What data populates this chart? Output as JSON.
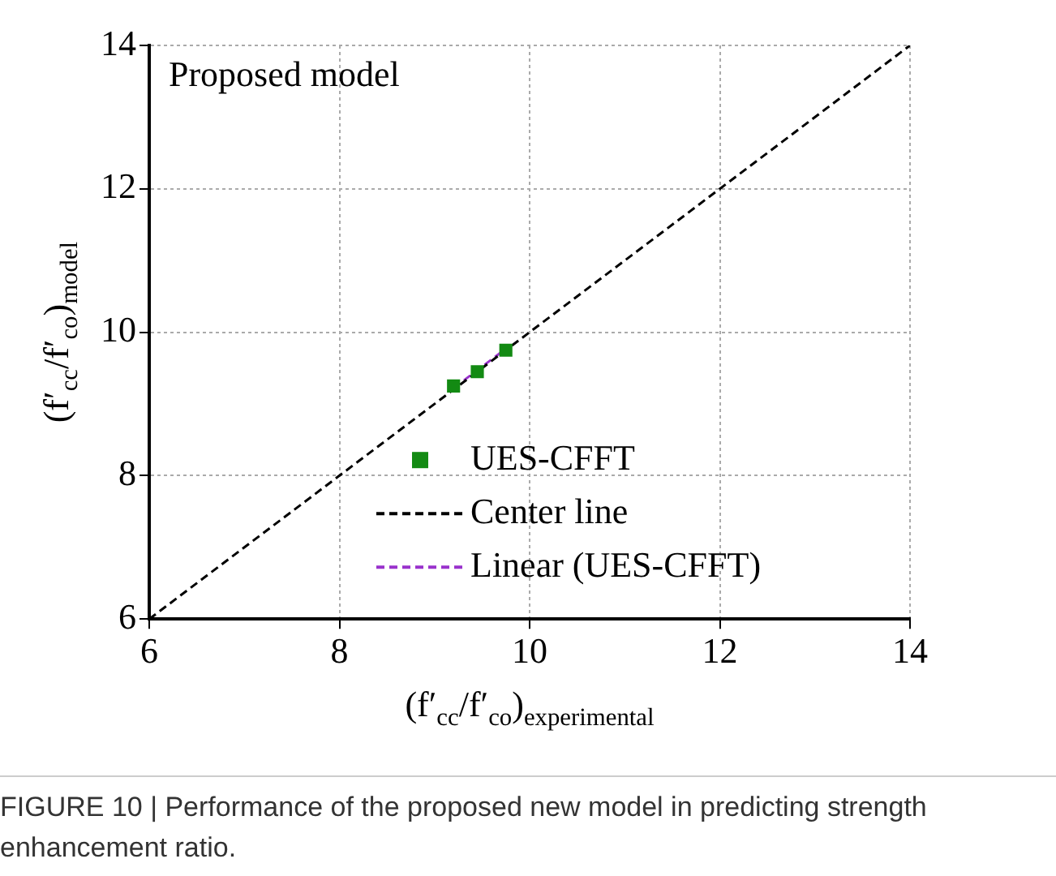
{
  "chart_data": {
    "type": "scatter",
    "title": "Proposed model",
    "xlabel": "(f′$_{cc}$/f′$_{co}$)$_{experimental}$",
    "ylabel": "(f′$_{cc}$/f′$_{co}$)$_{model}$",
    "series": [
      {
        "name": "UES-CFFT",
        "color": "#138a13",
        "marker": "square",
        "x": [
          9.2,
          9.45,
          9.75
        ],
        "values": [
          9.25,
          9.45,
          9.75
        ]
      },
      {
        "name": "Center line",
        "type": "line",
        "color": "#000000",
        "marker": "none",
        "line_style": "dashed",
        "x": [
          6,
          14
        ],
        "values": [
          6,
          14
        ]
      },
      {
        "name": "Linear (UES-CFFT)",
        "type": "line",
        "color": "#9932cc",
        "marker": "none",
        "line_style": "dashed",
        "x": [
          9.2,
          9.75
        ],
        "values": [
          9.22,
          9.77
        ]
      }
    ],
    "xlim": [
      6,
      14
    ],
    "ylim": [
      6,
      14
    ],
    "xticks": [
      6,
      8,
      10,
      12,
      14
    ],
    "yticks": [
      6,
      8,
      10,
      12,
      14
    ],
    "grid": true,
    "legend": "bottom right",
    "annotations": [
      "FIGURE 10 | Performance of the proposed new model in predicting strength enhancement ratio."
    ]
  }
}
